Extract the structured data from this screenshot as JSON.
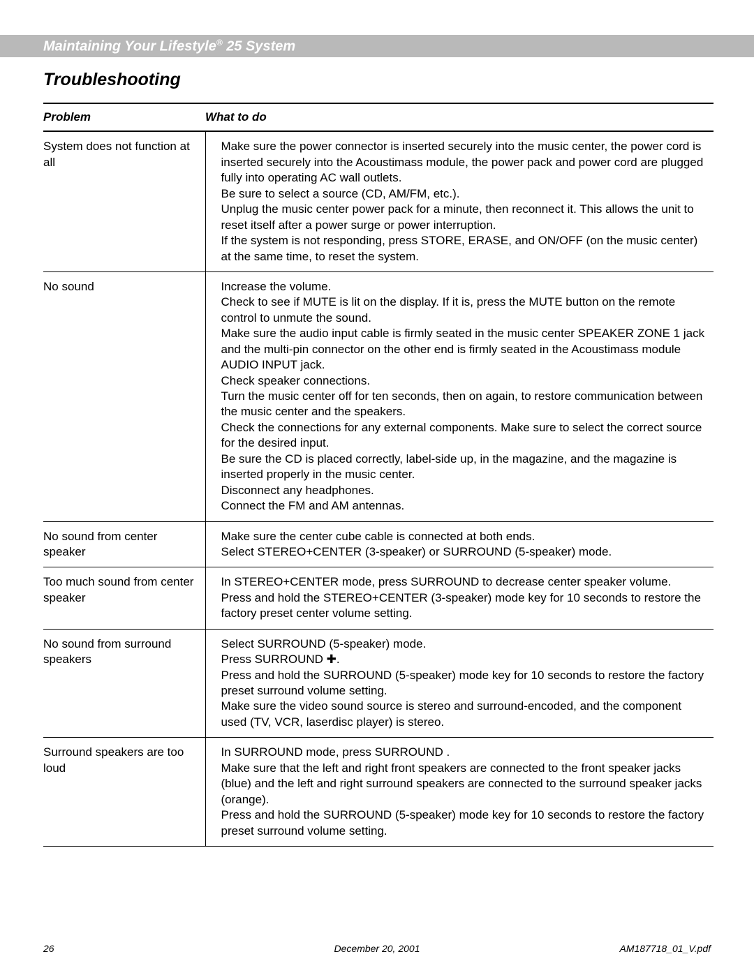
{
  "header": {
    "title_pre": "Maintaining Your Lifestyle",
    "title_post": " 25 System",
    "reg": "®"
  },
  "section_title": "Troubleshooting",
  "columns": {
    "problem": "Problem",
    "what": "What to do"
  },
  "rows": [
    {
      "problem": "System does not function at all",
      "what": "Make sure the power connector is inserted securely into the music center, the power cord is inserted securely into the Acoustimass  module, the power pack and power cord are plugged fully into operating AC wall outlets.\nBe sure to select a source (CD, AM/FM, etc.).\nUnplug the music center power pack for a minute, then reconnect it. This allows the unit to reset itself after a power surge or power interruption.\nIf the system is not responding, press STORE, ERASE, and ON/OFF (on the music center) at the same time, to reset the system."
    },
    {
      "problem": "No sound",
      "what": "Increase the volume.\nCheck to see if MUTE is lit on the display. If it is, press the MUTE button on the remote control to unmute the sound.\nMake sure the audio input cable is firmly seated in the music center SPEAKER ZONE 1 jack and the multi-pin connector on the other end is firmly seated in the Acoustimass module AUDIO INPUT jack.\nCheck speaker connections.\nTurn the music center off for ten seconds, then on again, to restore communication between the music center and the speakers.\nCheck the connections for any external components. Make sure to select the correct source for the desired input.\nBe sure the CD is placed correctly, label-side up, in the magazine, and the magazine is inserted properly in the music center.\nDisconnect any headphones.\nConnect the FM and AM antennas."
    },
    {
      "problem": "No sound from center speaker",
      "what": "Make sure the center cube cable is connected at both ends.\nSelect STEREO+CENTER (3-speaker) or SURROUND (5-speaker) mode.",
      "no_bottom": true
    },
    {
      "problem": "Too much sound from center speaker",
      "what": "In STEREO+CENTER mode, press SURROUND    to decrease center speaker volume.\nPress and hold the STEREO+CENTER (3-speaker) mode key for 10 seconds to restore the factory preset center volume setting."
    },
    {
      "problem": "No sound from surround speakers",
      "what": "Select SURROUND (5-speaker) mode.\nPress SURROUND ✚.\nPress and hold the SURROUND (5-speaker) mode key for 10 seconds to restore the factory preset surround volume setting.\nMake sure the video sound source is stereo and surround-encoded, and the component used (TV, VCR, laserdisc player) is stereo."
    },
    {
      "problem": "Surround speakers are too loud",
      "what": "In SURROUND mode, press SURROUND    .\nMake sure that the left and right front speakers are connected to the front speaker jacks (blue) and the left and right surround speakers are connected to the surround speaker jacks (orange).\nPress and hold the SURROUND (5-speaker) mode key for 10 seconds to restore the factory preset surround volume setting."
    }
  ],
  "footer": {
    "page_no": "26",
    "date": "December 20, 2001",
    "doc": "AM187718_01_V.pdf"
  },
  "style": {
    "header_bg": "#b9b9b9",
    "header_text": "#ffffff",
    "text_color": "#000000",
    "rule_color": "#000000",
    "font_size_body": 17,
    "font_size_title": 25,
    "font_size_footer": 14
  }
}
